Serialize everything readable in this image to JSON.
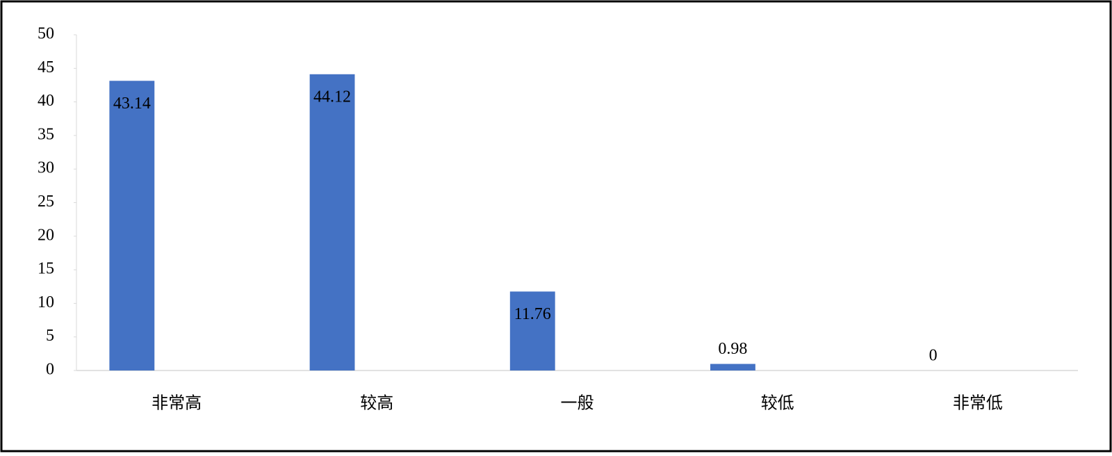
{
  "chart_data": {
    "type": "bar",
    "categories": [
      "非常高",
      "较高",
      "一般",
      "较低",
      "非常低"
    ],
    "values": [
      43.14,
      44.12,
      11.76,
      0.98,
      0
    ],
    "color": "#4472c4",
    "ylim": [
      0,
      50
    ],
    "yticks": [
      0,
      5,
      10,
      15,
      20,
      25,
      30,
      35,
      40,
      45,
      50
    ]
  }
}
